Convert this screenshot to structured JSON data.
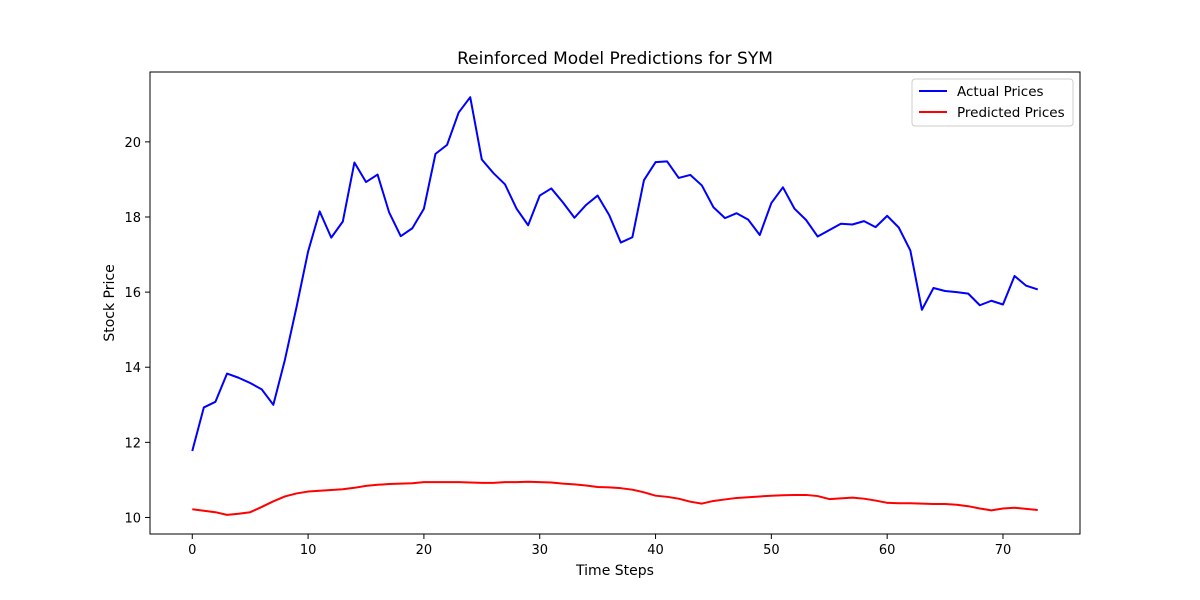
{
  "chart_data": {
    "type": "line",
    "title": "Reinforced Model Predictions for SYM",
    "xlabel": "Time Steps",
    "ylabel": "Stock Price",
    "xlim": [
      -3.65,
      76.65
    ],
    "ylim": [
      9.56,
      21.86
    ],
    "xticks": [
      0,
      10,
      20,
      30,
      40,
      50,
      60,
      70
    ],
    "yticks": [
      10,
      12,
      14,
      16,
      18,
      20
    ],
    "grid": false,
    "legend_position": "top-right",
    "x": [
      0,
      1,
      2,
      3,
      4,
      5,
      6,
      7,
      8,
      9,
      10,
      11,
      12,
      13,
      14,
      15,
      16,
      17,
      18,
      19,
      20,
      21,
      22,
      23,
      24,
      25,
      26,
      27,
      28,
      29,
      30,
      31,
      32,
      33,
      34,
      35,
      36,
      37,
      38,
      39,
      40,
      41,
      42,
      43,
      44,
      45,
      46,
      47,
      48,
      49,
      50,
      51,
      52,
      53,
      54,
      55,
      56,
      57,
      58,
      59,
      60,
      61,
      62,
      63,
      64,
      65,
      66,
      67,
      68,
      69,
      70,
      71,
      72,
      73
    ],
    "series": [
      {
        "name": "Actual Prices",
        "color": "#0000ff",
        "values": [
          11.77,
          12.93,
          13.08,
          13.83,
          13.72,
          13.58,
          13.41,
          13.0,
          14.2,
          15.6,
          17.08,
          18.15,
          17.45,
          17.88,
          19.45,
          18.93,
          19.13,
          18.12,
          17.49,
          17.7,
          18.22,
          19.68,
          19.92,
          20.78,
          21.19,
          19.53,
          19.17,
          18.87,
          18.22,
          17.78,
          18.57,
          18.76,
          18.39,
          17.98,
          18.32,
          18.57,
          18.05,
          17.32,
          17.46,
          18.98,
          19.46,
          19.48,
          19.04,
          19.12,
          18.84,
          18.26,
          17.97,
          18.1,
          17.93,
          17.52,
          18.37,
          18.79,
          18.22,
          17.92,
          17.48,
          17.65,
          17.82,
          17.8,
          17.89,
          17.73,
          18.03,
          17.72,
          17.11,
          15.53,
          16.11,
          16.03,
          16.0,
          15.96,
          15.65,
          15.77,
          15.67,
          16.43,
          16.17,
          16.07
        ]
      },
      {
        "name": "Predicted Prices",
        "color": "#ff0000",
        "values": [
          10.22,
          10.18,
          10.14,
          10.07,
          10.1,
          10.14,
          10.28,
          10.43,
          10.56,
          10.64,
          10.69,
          10.71,
          10.73,
          10.75,
          10.79,
          10.84,
          10.87,
          10.89,
          10.9,
          10.91,
          10.94,
          10.94,
          10.94,
          10.94,
          10.93,
          10.92,
          10.92,
          10.94,
          10.94,
          10.95,
          10.94,
          10.93,
          10.9,
          10.88,
          10.85,
          10.81,
          10.8,
          10.78,
          10.74,
          10.67,
          10.58,
          10.55,
          10.5,
          10.42,
          10.37,
          10.44,
          10.48,
          10.52,
          10.54,
          10.56,
          10.58,
          10.59,
          10.6,
          10.6,
          10.57,
          10.49,
          10.51,
          10.53,
          10.5,
          10.45,
          10.39,
          10.38,
          10.38,
          10.37,
          10.36,
          10.36,
          10.34,
          10.3,
          10.24,
          10.19,
          10.24,
          10.26,
          10.23,
          10.2
        ]
      }
    ]
  }
}
